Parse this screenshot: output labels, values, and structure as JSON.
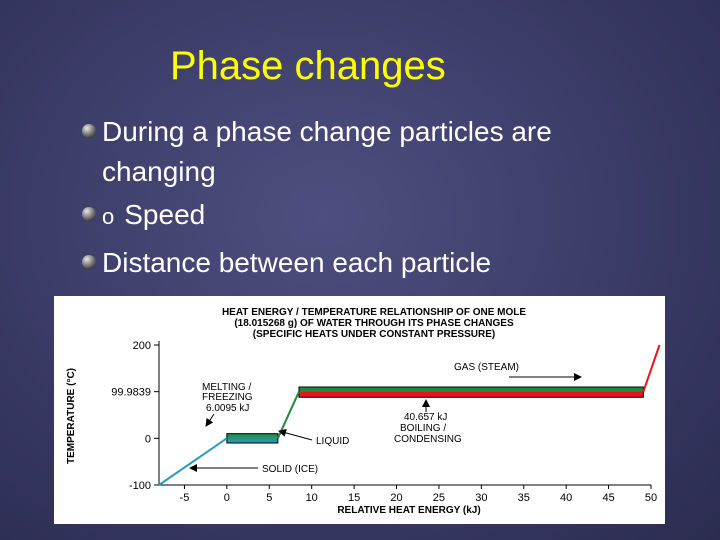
{
  "slide": {
    "title": "Phase changes",
    "bullets": [
      "During a phase change particles are changing",
      "Speed",
      "Distance between each particle"
    ],
    "sub_marker": "o"
  },
  "chart_data": {
    "type": "line",
    "title_lines": [
      "HEAT ENERGY / TEMPERATURE RELATIONSHIP OF ONE MOLE",
      "(18.015268 g) OF WATER THROUGH ITS PHASE CHANGES",
      "(SPECIFIC HEATS UNDER CONSTANT PRESSURE)"
    ],
    "xlabel": "RELATIVE HEAT ENERGY (kJ)",
    "ylabel": "TEMPERATURE (°C)",
    "xlim": [
      -8,
      50
    ],
    "ylim": [
      -100,
      200
    ],
    "x_ticks": [
      "-5",
      "0",
      "5",
      "10",
      "15",
      "20",
      "25",
      "30",
      "35",
      "40",
      "45",
      "50"
    ],
    "y_ticks": [
      "200",
      "99.9839",
      "0",
      "-100"
    ],
    "y_tick_values": [
      200,
      99.9839,
      0,
      -100
    ],
    "curve_points": [
      [
        -8,
        -100
      ],
      [
        0,
        0
      ],
      [
        6.0095,
        0
      ],
      [
        8.5,
        99.9839
      ],
      [
        49.1,
        99.9839
      ],
      [
        51,
        200
      ]
    ],
    "bands": [
      {
        "phase": "solid-liquid",
        "x0": 0,
        "x1": 6.0095,
        "y_top": 10,
        "y_bottom": -10,
        "color_top": "#1e8c3c",
        "color_bottom": "#2a9bc0"
      },
      {
        "phase": "liquid-gas",
        "x0": 8.5,
        "x1": 49.1,
        "y_top": 110,
        "y_bottom": 88,
        "color_top": "#1e8c3c",
        "color_bottom": "#e8141a"
      }
    ],
    "annotations": [
      {
        "name": "gas-label",
        "text": [
          "GAS (STEAM)"
        ]
      },
      {
        "name": "melting-label",
        "text": [
          "MELTING /",
          "FREEZING",
          "6.0095 kJ"
        ]
      },
      {
        "name": "boiling-label",
        "text": [
          "40.657 kJ",
          "BOILING /",
          "CONDENSING"
        ]
      },
      {
        "name": "liquid-label",
        "text": [
          "LIQUID"
        ]
      },
      {
        "name": "solid-label",
        "text": [
          "SOLID (ICE)"
        ]
      }
    ],
    "colors": {
      "solid": "#2a9bc0",
      "liquid": "#1e8c3c",
      "gas": "#e8141a"
    }
  }
}
